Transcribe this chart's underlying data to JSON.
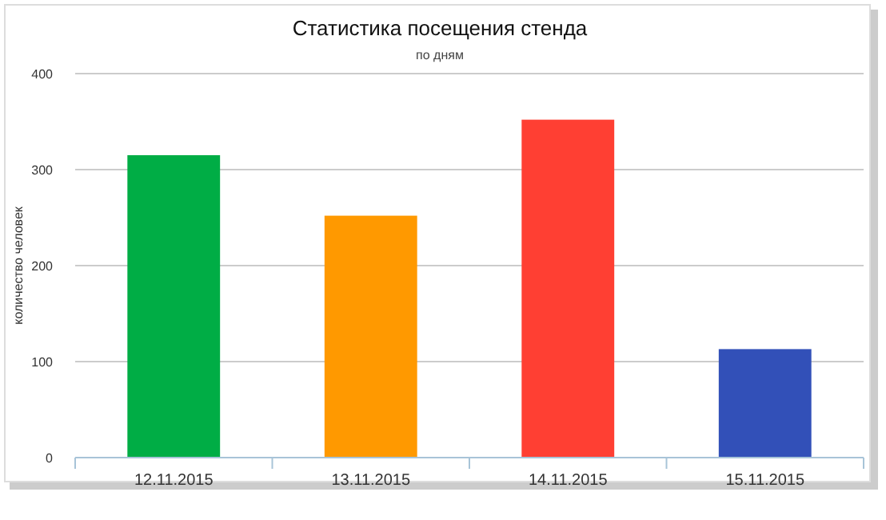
{
  "chart_data": {
    "type": "bar",
    "title": "Статистика посещения стенда",
    "subtitle": "по дням",
    "ylabel": "количество человек",
    "categories": [
      "12.11.2015",
      "13.11.2015",
      "14.11.2015",
      "15.11.2015"
    ],
    "values": [
      315,
      252,
      352,
      113
    ],
    "colors": [
      "#00ad45",
      "#ff9900",
      "#ff3f33",
      "#3250b8"
    ],
    "ylim": [
      0,
      400
    ],
    "yticks": [
      0,
      100,
      200,
      300,
      400
    ],
    "grid": "y"
  }
}
